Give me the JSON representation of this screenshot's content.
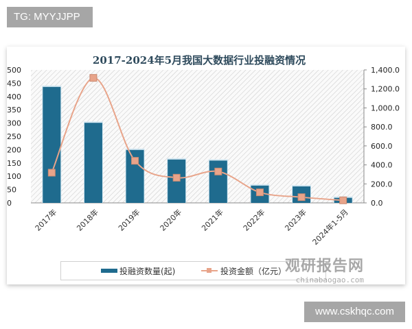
{
  "overlay": {
    "tag": "TG: MYYJJPP",
    "site": "www.cskhqc.com"
  },
  "watermark": {
    "name": "观研报告网",
    "url": "chinabaogao.com"
  },
  "chart_data": {
    "type": "bar+line",
    "title": "2017-2024年5月我国大数据行业投融资情况",
    "categories": [
      "2017年",
      "2018年",
      "2019年",
      "2020年",
      "2021年",
      "2022年",
      "2023年",
      "2024年1-5月"
    ],
    "series": [
      {
        "name": "投融资数量(起)",
        "type": "bar",
        "axis": "left",
        "color": "#1f6b8e",
        "values": [
          436,
          301,
          199,
          163,
          159,
          65,
          62,
          19
        ]
      },
      {
        "name": "投资金额（亿元）",
        "type": "line",
        "axis": "right",
        "color": "#e8a48a",
        "values": [
          318,
          1316,
          443,
          265,
          330,
          111,
          60,
          27
        ]
      }
    ],
    "left_axis": {
      "ylim": [
        0,
        500
      ],
      "ticks": [
        "0",
        "50",
        "100",
        "150",
        "200",
        "250",
        "300",
        "350",
        "400",
        "450",
        "500"
      ]
    },
    "right_axis": {
      "ylim": [
        0,
        1400
      ],
      "ticks": [
        "0.0",
        "200.0",
        "400.0",
        "600.0",
        "800.0",
        "1,000.0",
        "1,200.0",
        "1,400.0"
      ]
    },
    "legend": "bottom",
    "grid": false
  }
}
